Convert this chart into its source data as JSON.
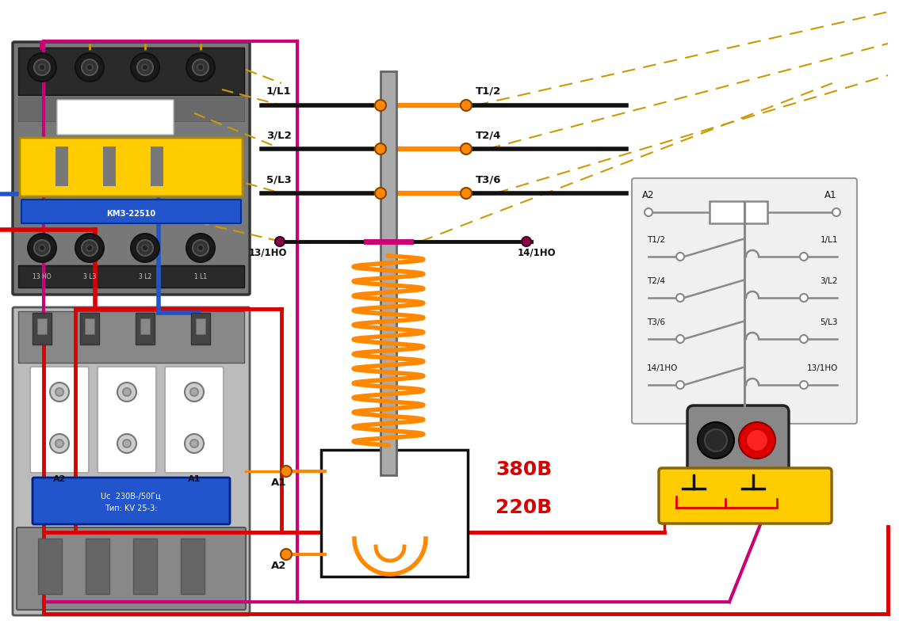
{
  "bg_color": "#ffffff",
  "orange": "#FF8800",
  "black": "#111111",
  "magenta": "#CC0077",
  "red": "#DD0000",
  "blue": "#2255CC",
  "yellow": "#FFCC00",
  "gray": "#888888",
  "light_gray": "#CCCCCC",
  "dark_gray": "#444444",
  "golden": "#CC9900",
  "olive_dash": "#AA8800",
  "label_380": "380В",
  "label_220": "220В",
  "contact_left": [
    "1/L1",
    "3/L2",
    "5/L3"
  ],
  "contact_right": [
    "T1/2",
    "T2/4",
    "T3/6"
  ],
  "aux_left": "13/1HO",
  "aux_right": "14/1HO",
  "schema_rows": [
    [
      "A2",
      "A1"
    ],
    [
      "T1/2",
      "1/L1"
    ],
    [
      "T2/4",
      "3/L2"
    ],
    [
      "T3/6",
      "5/L3"
    ],
    [
      "14/1HO",
      "13/1HO"
    ]
  ],
  "fig_w": 11.34,
  "fig_h": 7.98,
  "dpi": 100
}
